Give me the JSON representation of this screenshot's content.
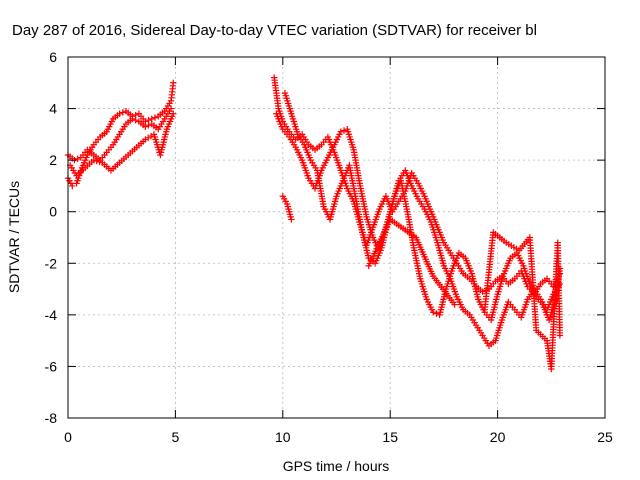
{
  "chart_data": {
    "type": "scatter",
    "title": "Day 287 of 2016, Sidereal Day-to-day VTEC variation (SDTVAR) for receiver bl",
    "xlabel": "GPS time / hours",
    "ylabel": "SDTVAR / TECUs",
    "xlim": [
      0,
      25
    ],
    "ylim": [
      -8,
      6
    ],
    "xticks": [
      "0",
      "5",
      "10",
      "15",
      "20",
      "25"
    ],
    "yticks": [
      "-8",
      "-6",
      "-4",
      "-2",
      "0",
      "2",
      "4",
      "6"
    ],
    "grid": true,
    "marker": "plus",
    "colors": {
      "series": "#ff0000",
      "axis": "#000000",
      "grid": "#b8b8b8"
    },
    "series": [
      {
        "x": [
          0.0,
          0.2,
          0.4,
          0.6,
          0.9,
          1.2,
          1.5,
          1.8,
          2.1,
          2.4,
          2.7,
          3.0,
          3.3,
          3.6,
          3.9,
          4.2,
          4.5,
          4.8,
          4.9
        ],
        "y": [
          1.3,
          1.0,
          1.1,
          1.6,
          2.2,
          2.6,
          2.9,
          3.1,
          3.6,
          3.8,
          3.9,
          3.7,
          3.8,
          3.5,
          3.6,
          3.7,
          3.9,
          4.3,
          5.0
        ]
      },
      {
        "x": [
          0.0,
          0.3,
          0.6,
          0.9,
          1.2,
          1.5,
          1.8,
          2.1,
          2.4,
          2.7,
          3.0,
          3.3,
          3.6,
          3.9,
          4.2,
          4.5,
          4.8
        ],
        "y": [
          2.2,
          2.0,
          2.1,
          2.4,
          2.2,
          2.0,
          2.3,
          2.6,
          3.0,
          3.4,
          3.6,
          3.5,
          3.3,
          3.4,
          3.2,
          3.6,
          4.0
        ]
      },
      {
        "x": [
          0.1,
          0.4,
          0.8,
          1.2,
          1.6,
          2.0,
          2.4,
          2.8,
          3.2,
          3.6,
          4.0,
          4.3,
          4.6,
          4.9
        ],
        "y": [
          1.8,
          1.4,
          1.7,
          2.0,
          1.9,
          1.6,
          1.9,
          2.2,
          2.5,
          2.8,
          3.0,
          2.2,
          3.2,
          3.8
        ]
      },
      {
        "x": [
          9.6,
          9.8,
          10.0,
          10.3,
          10.6,
          10.9,
          11.2,
          11.5,
          11.8,
          12.1,
          12.4,
          12.7,
          13.0,
          13.3,
          13.6,
          13.9,
          14.2,
          14.5,
          14.8,
          15.1,
          15.4,
          15.7,
          16.0,
          16.3,
          16.6,
          16.9,
          17.2,
          17.5,
          17.8,
          18.1,
          18.4,
          18.7,
          19.0,
          19.3,
          19.6,
          19.9,
          20.2,
          20.5,
          20.8,
          21.1,
          21.4,
          21.7,
          22.0,
          22.3,
          22.6,
          22.9
        ],
        "y": [
          5.2,
          4.0,
          3.5,
          3.1,
          2.8,
          3.0,
          2.6,
          2.4,
          2.6,
          2.9,
          2.3,
          1.6,
          0.9,
          0.4,
          -0.5,
          -1.3,
          -0.6,
          0.1,
          0.6,
          0.0,
          0.4,
          0.8,
          1.5,
          1.1,
          0.6,
          0.0,
          -0.6,
          -1.2,
          -1.6,
          -2.0,
          -2.4,
          -2.6,
          -2.9,
          -3.1,
          -3.0,
          -2.7,
          -2.5,
          -2.8,
          -2.6,
          -2.3,
          -2.9,
          -3.2,
          -2.8,
          -2.6,
          -2.9,
          -2.4
        ]
      },
      {
        "x": [
          9.7,
          10.0,
          10.3,
          10.6,
          10.9,
          11.2,
          11.5,
          11.8,
          12.1,
          12.4,
          12.7,
          13.0,
          13.3,
          13.6,
          13.9,
          14.2,
          14.5,
          14.8,
          15.1,
          15.4,
          15.7,
          16.0,
          16.3,
          16.6,
          16.9,
          17.2,
          17.5,
          17.8,
          18.1,
          18.4,
          18.7,
          19.0,
          19.3,
          19.6,
          19.9,
          20.2,
          20.5,
          20.8,
          21.1,
          21.4,
          21.7,
          22.0,
          22.3,
          22.6,
          22.9
        ],
        "y": [
          3.8,
          3.2,
          2.9,
          2.5,
          2.0,
          1.3,
          0.9,
          1.6,
          2.1,
          2.6,
          3.1,
          3.2,
          2.4,
          1.0,
          -0.2,
          -1.0,
          -1.5,
          -0.6,
          0.3,
          1.2,
          1.6,
          1.0,
          0.5,
          0.1,
          -0.4,
          -1.2,
          -2.1,
          -2.6,
          -3.3,
          -3.8,
          -4.0,
          -4.4,
          -4.8,
          -5.2,
          -5.0,
          -4.2,
          -3.5,
          -3.8,
          -4.1,
          -3.4,
          -3.0,
          -3.4,
          -3.8,
          -3.2,
          -2.8
        ]
      },
      {
        "x": [
          10.1,
          10.4,
          10.7,
          11.0,
          11.3,
          11.6,
          11.9,
          12.2,
          12.5,
          12.8,
          13.1,
          13.4,
          13.7,
          14.0,
          14.3,
          14.6,
          14.9,
          15.2,
          15.5,
          15.8,
          16.1,
          16.4,
          16.7,
          17.0,
          17.3,
          17.6,
          17.9,
          18.2,
          18.5,
          18.8,
          19.1,
          19.4,
          19.7,
          20.0,
          20.3,
          20.6,
          20.9,
          21.2,
          21.5,
          21.8,
          22.1,
          22.4,
          22.7,
          22.9
        ],
        "y": [
          4.6,
          3.8,
          3.0,
          2.6,
          2.0,
          1.6,
          0.2,
          -0.3,
          0.6,
          1.2,
          1.8,
          0.5,
          -0.8,
          -1.8,
          -2.0,
          -1.4,
          -0.4,
          0.6,
          1.2,
          0.0,
          -1.4,
          -2.6,
          -3.4,
          -3.9,
          -4.0,
          -3.0,
          -2.2,
          -1.6,
          -1.8,
          -2.4,
          -3.4,
          -3.9,
          -4.2,
          -3.2,
          -2.4,
          -1.8,
          -1.6,
          -2.1,
          -2.8,
          -3.3,
          -3.6,
          -4.2,
          -3.4,
          -2.2
        ]
      },
      {
        "x": [
          10.0,
          10.2,
          10.4,
          14.0,
          15.0,
          16.2,
          17.0,
          18.0,
          19.4,
          19.8,
          20.4,
          21.0,
          21.5,
          21.8,
          22.3,
          22.5,
          22.8,
          22.9
        ],
        "y": [
          0.6,
          0.3,
          -0.3,
          -2.1,
          -0.3,
          -1.0,
          -2.5,
          -3.6,
          -3.8,
          -0.8,
          -1.2,
          -1.5,
          -1.0,
          -4.6,
          -5.0,
          -6.1,
          -1.2,
          -4.8
        ]
      }
    ]
  }
}
